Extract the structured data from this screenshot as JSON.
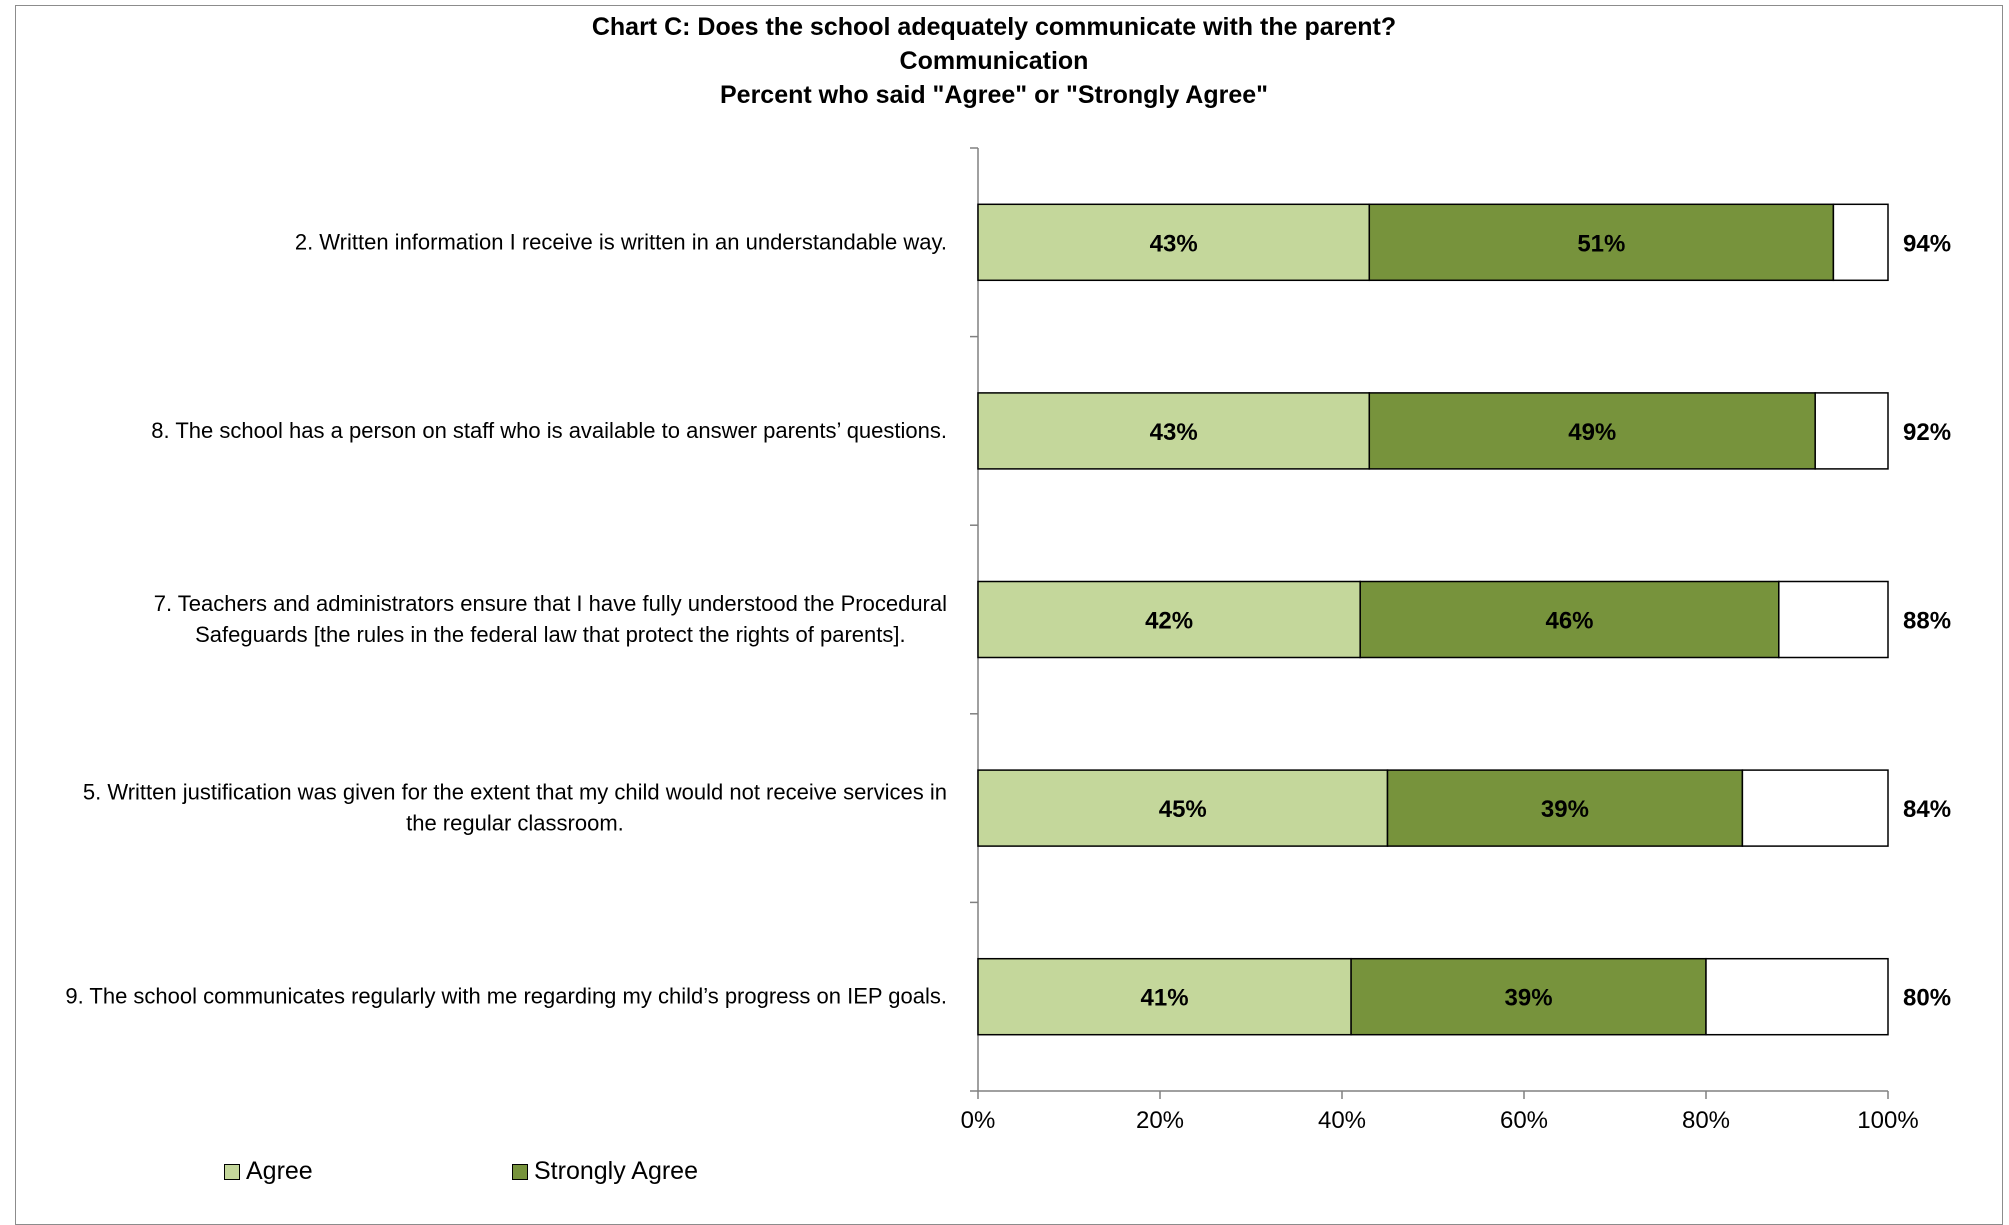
{
  "chart_data": {
    "type": "bar",
    "orientation": "horizontal",
    "stacked": true,
    "title_lines": [
      "Chart C: Does the school adequately communicate with the parent?",
      "Communication",
      "Percent who said \"Agree\" or \"Strongly Agree\""
    ],
    "categories": [
      [
        "2. Written information I receive is written in an understandable way."
      ],
      [
        "8. The school has a person on staff who is available to answer parents’ questions."
      ],
      [
        "7. Teachers and administrators ensure that I have fully understood the Procedural",
        "Safeguards [the rules in the federal law that protect the rights of parents]."
      ],
      [
        "5. Written justification was given for the extent that my child would not receive services in",
        "the regular classroom."
      ],
      [
        "9. The school communicates regularly with me regarding my child’s progress on IEP goals."
      ]
    ],
    "series": [
      {
        "name": "Agree",
        "color": "#c4d79b",
        "values": [
          43,
          43,
          42,
          45,
          41
        ],
        "labels": [
          "43%",
          "43%",
          "42%",
          "45%",
          "41%"
        ]
      },
      {
        "name": "Strongly Agree",
        "color": "#77933c",
        "values": [
          51,
          49,
          46,
          39,
          39
        ],
        "labels": [
          "51%",
          "49%",
          "46%",
          "39%",
          "39%"
        ]
      }
    ],
    "totals": [
      "94%",
      "92%",
      "88%",
      "84%",
      "80%"
    ],
    "xlim": [
      0,
      100
    ],
    "xticks": [
      "0%",
      "20%",
      "40%",
      "60%",
      "80%",
      "100%"
    ],
    "grid": false,
    "legend_position": "bottom-left"
  }
}
